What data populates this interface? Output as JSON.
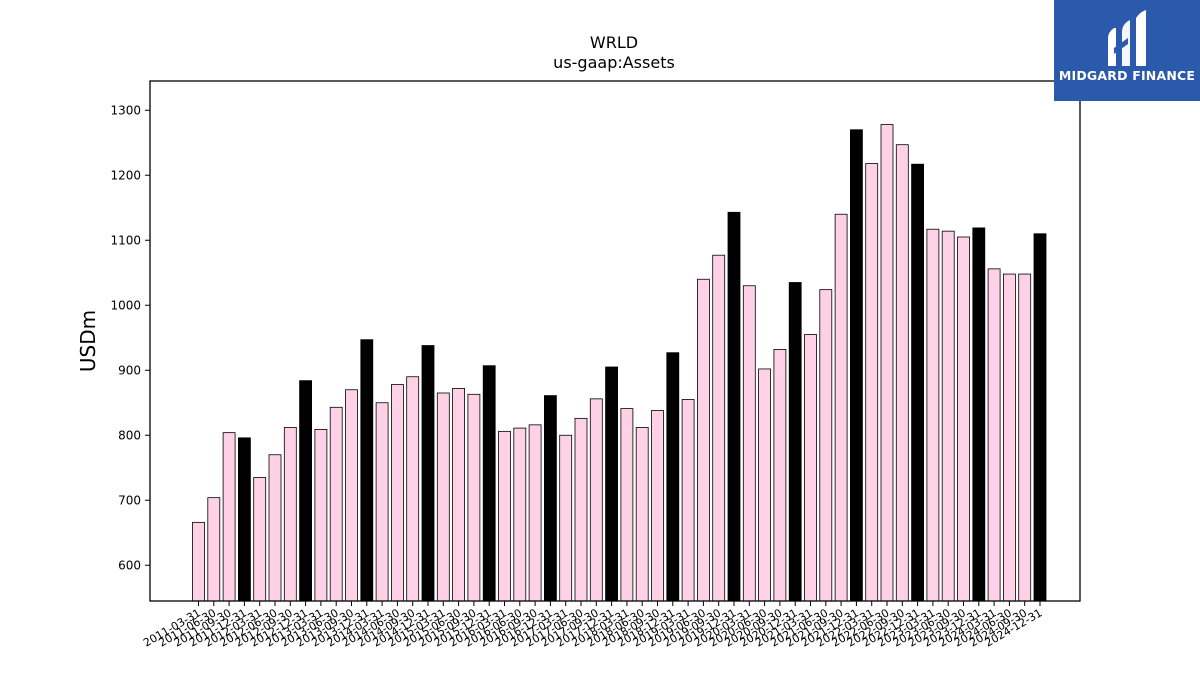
{
  "brand": {
    "name": "MIDGARD FINANCE",
    "color": "#2b5aad",
    "icon": "midgard-logo-icon"
  },
  "chart_data": {
    "type": "bar",
    "title": "WRLD",
    "subtitle": "us-gaap:Assets",
    "xlabel": "",
    "ylabel": "USDm",
    "ylim": [
      545,
      1345
    ],
    "yticks": [
      600,
      700,
      800,
      900,
      1000,
      1100,
      1200,
      1300
    ],
    "colors": {
      "quarter": "#ffd1e6",
      "fiscal_year_end": "#000000",
      "edge": "#000000"
    },
    "categories": [
      "2011-03-31",
      "2011-06-30",
      "2011-09-30",
      "2011-12-31",
      "2012-03-31",
      "2012-06-30",
      "2012-09-30",
      "2012-12-31",
      "2013-03-31",
      "2013-06-30",
      "2013-09-30",
      "2013-12-31",
      "2014-03-31",
      "2014-06-30",
      "2014-09-30",
      "2014-12-31",
      "2015-03-31",
      "2015-06-30",
      "2015-09-30",
      "2015-12-31",
      "2016-03-31",
      "2016-06-30",
      "2016-09-30",
      "2016-12-31",
      "2017-03-31",
      "2017-06-30",
      "2017-09-30",
      "2017-12-31",
      "2018-03-31",
      "2018-06-30",
      "2018-09-30",
      "2018-12-31",
      "2019-03-31",
      "2019-06-30",
      "2019-09-30",
      "2019-12-31",
      "2020-03-31",
      "2020-06-30",
      "2020-09-30",
      "2020-12-31",
      "2021-03-31",
      "2021-06-30",
      "2021-09-30",
      "2021-12-31",
      "2022-03-31",
      "2022-06-30",
      "2022-09-30",
      "2022-12-31",
      "2023-03-31",
      "2023-06-30",
      "2023-09-30",
      "2023-12-31",
      "2024-03-31",
      "2024-06-30",
      "2024-09-30",
      "2024-12-31"
    ],
    "values": [
      666,
      704,
      804,
      796,
      735,
      770,
      812,
      884,
      809,
      843,
      870,
      947,
      850,
      878,
      890,
      938,
      865,
      872,
      863,
      907,
      806,
      811,
      816,
      861,
      800,
      826,
      856,
      905,
      841,
      812,
      838,
      927,
      855,
      1040,
      1077,
      1143,
      1030,
      902,
      932,
      1035,
      955,
      1024,
      1140,
      1270,
      1218,
      1278,
      1247,
      1217,
      1117,
      1114,
      1105,
      1119,
      1056,
      1048,
      1048,
      1110
    ],
    "highlight": [
      false,
      false,
      false,
      true,
      false,
      false,
      false,
      true,
      false,
      false,
      false,
      true,
      false,
      false,
      false,
      true,
      false,
      false,
      false,
      true,
      false,
      false,
      false,
      true,
      false,
      false,
      false,
      true,
      false,
      false,
      false,
      true,
      false,
      false,
      false,
      true,
      false,
      false,
      false,
      true,
      false,
      false,
      false,
      true,
      false,
      false,
      false,
      true,
      false,
      false,
      false,
      true,
      false,
      false,
      false,
      true
    ]
  }
}
